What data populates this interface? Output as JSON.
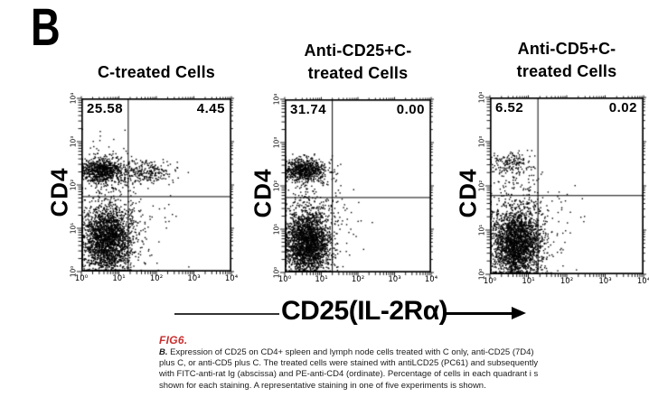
{
  "figure_label": "B",
  "shared_x_axis": {
    "label": "CD25(IL-2Rα)",
    "scale": "log",
    "tick_labels": [
      "10⁰",
      "10¹",
      "10²",
      "10³",
      "10⁴"
    ]
  },
  "y_axis": {
    "scale": "log",
    "tick_labels": [
      "10⁰",
      "10¹",
      "10²",
      "10³",
      "10⁴"
    ]
  },
  "chart_data": [
    {
      "type": "scatter",
      "title_lines": [
        "C-treated Cells"
      ],
      "xlabel": "CD25(IL-2Rα)",
      "ylabel": "CD4",
      "xlim_log": [
        0,
        4
      ],
      "ylim_log": [
        0,
        4
      ],
      "quadrant_percentages": {
        "upper_left": "25.58",
        "upper_right": "4.45"
      },
      "quad_x_log": 1.25,
      "quad_y_log": 1.73,
      "clusters": [
        {
          "x": 0.55,
          "y": 2.33,
          "sx": 0.28,
          "sy": 0.13,
          "n": 700
        },
        {
          "x": 0.7,
          "y": 2.28,
          "sx": 0.45,
          "sy": 0.2,
          "n": 200
        },
        {
          "x": 1.7,
          "y": 2.28,
          "sx": 0.28,
          "sy": 0.13,
          "n": 170
        },
        {
          "x": 2.1,
          "y": 2.3,
          "sx": 0.35,
          "sy": 0.16,
          "n": 60
        },
        {
          "x": 0.6,
          "y": 2.75,
          "sx": 0.35,
          "sy": 0.2,
          "n": 30
        },
        {
          "x": 0.7,
          "y": 0.72,
          "sx": 0.34,
          "sy": 0.4,
          "n": 2300
        },
        {
          "x": 0.8,
          "y": 1.45,
          "sx": 0.45,
          "sy": 0.35,
          "n": 110
        },
        {
          "x": 1.7,
          "y": 0.9,
          "sx": 0.5,
          "sy": 0.5,
          "n": 40
        }
      ]
    },
    {
      "type": "scatter",
      "title_lines": [
        "Anti-CD25+C-",
        "treated Cells"
      ],
      "xlabel": "CD25(IL-2Rα)",
      "ylabel": "CD4",
      "xlim_log": [
        0,
        4
      ],
      "ylim_log": [
        0,
        4
      ],
      "quadrant_percentages": {
        "upper_left": "31.74",
        "upper_right": "0.00"
      },
      "quad_x_log": 1.3,
      "quad_y_log": 1.73,
      "clusters": [
        {
          "x": 0.55,
          "y": 2.37,
          "sx": 0.28,
          "sy": 0.13,
          "n": 620
        },
        {
          "x": 0.6,
          "y": 2.3,
          "sx": 0.4,
          "sy": 0.22,
          "n": 140
        },
        {
          "x": 0.62,
          "y": 0.68,
          "sx": 0.32,
          "sy": 0.38,
          "n": 2400
        },
        {
          "x": 0.75,
          "y": 1.45,
          "sx": 0.45,
          "sy": 0.35,
          "n": 110
        },
        {
          "x": 1.5,
          "y": 0.9,
          "sx": 0.4,
          "sy": 0.45,
          "n": 35
        }
      ]
    },
    {
      "type": "scatter",
      "title_lines": [
        "Anti-CD5+C-",
        "treated Cells"
      ],
      "xlabel": "CD25(IL-2Rα)",
      "ylabel": "CD4",
      "xlim_log": [
        0,
        4
      ],
      "ylim_log": [
        0,
        4
      ],
      "quadrant_percentages": {
        "upper_left": "6.52",
        "upper_right": "0.02"
      },
      "quad_x_log": 1.25,
      "quad_y_log": 1.78,
      "clusters": [
        {
          "x": 0.52,
          "y": 2.5,
          "sx": 0.3,
          "sy": 0.12,
          "n": 150
        },
        {
          "x": 0.55,
          "y": 2.28,
          "sx": 0.35,
          "sy": 0.22,
          "n": 45
        },
        {
          "x": 0.72,
          "y": 0.68,
          "sx": 0.34,
          "sy": 0.4,
          "n": 2500
        },
        {
          "x": 0.8,
          "y": 1.5,
          "sx": 0.5,
          "sy": 0.4,
          "n": 150
        },
        {
          "x": 1.55,
          "y": 0.85,
          "sx": 0.45,
          "sy": 0.5,
          "n": 30
        }
      ]
    }
  ],
  "caption": {
    "figure_ref": "FIG6.",
    "panel_prefix": "B.",
    "lines": [
      "Expression of CD25 on CD4+ spleen and lymph node cells treated with C only, anti-CD25 (7D4)",
      "plus C, or anti-CD5 plus C. The treated cells were stained with antiLCD25 (PC61) and subsequently",
      "with FITC-anti-rat Ig (abscissa) and PE-anti-CD4 (ordinate). Percentage of cells in each quadrant i s",
      "shown for each staining. A representative staining in one of five experiments is shown."
    ]
  },
  "colors": {
    "ink": "#000000",
    "background": "#ffffff",
    "caption_red": "#c92f2f"
  }
}
